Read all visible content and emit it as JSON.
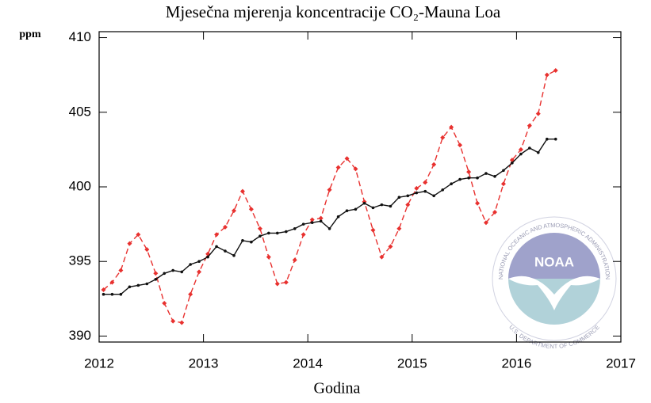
{
  "chart_data": {
    "type": "line",
    "title": "Mjesečna mjerenja koncentracije CO₂-Mauna Loa",
    "ylabel": "ppm",
    "xlabel": "Godina",
    "xlim": [
      2012,
      2017
    ],
    "xticks": [
      2012,
      2013,
      2014,
      2015,
      2016,
      2017
    ],
    "ylim": [
      389.6,
      410.4
    ],
    "yticks": [
      390,
      395,
      400,
      405,
      410
    ],
    "x": [
      2012.042,
      2012.125,
      2012.208,
      2012.292,
      2012.375,
      2012.458,
      2012.542,
      2012.625,
      2012.708,
      2012.792,
      2012.875,
      2012.958,
      2013.042,
      2013.125,
      2013.208,
      2013.292,
      2013.375,
      2013.458,
      2013.542,
      2013.625,
      2013.708,
      2013.792,
      2013.875,
      2013.958,
      2014.042,
      2014.125,
      2014.208,
      2014.292,
      2014.375,
      2014.458,
      2014.542,
      2014.625,
      2014.708,
      2014.792,
      2014.875,
      2014.958,
      2015.042,
      2015.125,
      2015.208,
      2015.292,
      2015.375,
      2015.458,
      2015.542,
      2015.625,
      2015.708,
      2015.792,
      2015.875,
      2015.958,
      2016.042,
      2016.125,
      2016.208,
      2016.292,
      2016.375
    ],
    "series": [
      {
        "color": "#e8312f",
        "dashed": true,
        "marker": "diamond",
        "values": [
          393.1,
          393.6,
          394.4,
          396.2,
          396.8,
          395.8,
          394.2,
          392.2,
          391.0,
          390.9,
          392.8,
          394.3,
          395.5,
          396.8,
          397.3,
          398.4,
          399.7,
          398.5,
          397.2,
          395.3,
          393.5,
          393.6,
          395.1,
          396.8,
          397.8,
          397.9,
          399.8,
          401.3,
          401.9,
          401.2,
          399.0,
          397.1,
          395.3,
          396.0,
          397.2,
          398.8,
          399.9,
          400.3,
          401.5,
          403.3,
          404.0,
          402.8,
          401.0,
          398.9,
          397.6,
          398.3,
          400.2,
          401.8,
          402.5,
          404.1,
          404.9,
          407.5,
          407.8
        ]
      },
      {
        "color": "#111111",
        "dashed": false,
        "marker": "dot",
        "values": [
          392.8,
          392.8,
          392.8,
          393.3,
          393.4,
          393.5,
          393.8,
          394.2,
          394.4,
          394.3,
          394.8,
          395.0,
          395.3,
          396.0,
          395.7,
          395.4,
          396.4,
          396.3,
          396.7,
          396.9,
          396.9,
          397.0,
          397.2,
          397.5,
          397.6,
          397.7,
          397.2,
          398.0,
          398.4,
          398.5,
          398.9,
          398.6,
          398.8,
          398.7,
          399.3,
          399.4,
          399.6,
          399.7,
          399.4,
          399.8,
          400.2,
          400.5,
          400.6,
          400.6,
          400.9,
          400.7,
          401.1,
          401.6,
          402.2,
          402.6,
          402.3,
          403.2,
          403.2
        ]
      }
    ]
  },
  "logo": {
    "text": "NOAA",
    "ring_top": "NATIONAL OCEANIC AND ATMOSPHERIC ADMINISTRATION",
    "ring_bottom": "U.S. DEPARTMENT OF COMMERCE"
  }
}
